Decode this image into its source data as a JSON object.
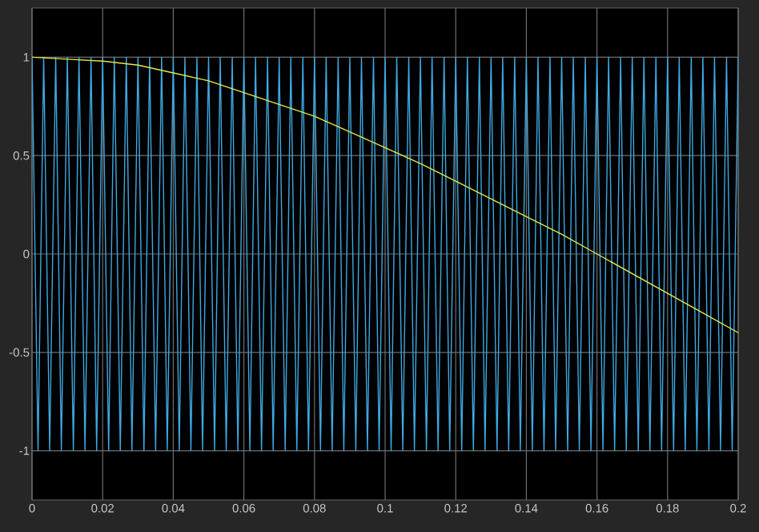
{
  "chart_data": {
    "type": "line",
    "xlim": [
      0,
      0.2
    ],
    "ylim": [
      -1.25,
      1.25
    ],
    "xticks": [
      0,
      0.02,
      0.04,
      0.06,
      0.08,
      0.1,
      0.12,
      0.14,
      0.16,
      0.18,
      0.2
    ],
    "yticks": [
      -1,
      -0.5,
      0,
      0.5,
      1
    ],
    "grid": true,
    "line_style": "solid",
    "series": [
      {
        "color": "#3fa9e3",
        "x": [
          0,
          0.0017,
          0.0033,
          0.005,
          0.0067,
          0.0083,
          0.01,
          0.0117,
          0.0133,
          0.015,
          0.0167,
          0.0183,
          0.02,
          0.0217,
          0.0233,
          0.025,
          0.0267,
          0.0283,
          0.03,
          0.0317,
          0.0333,
          0.035,
          0.0367,
          0.0383,
          0.04,
          0.0417,
          0.0433,
          0.045,
          0.0467,
          0.0483,
          0.05,
          0.0517,
          0.0533,
          0.055,
          0.0567,
          0.0583,
          0.06,
          0.0617,
          0.0633,
          0.065,
          0.0667,
          0.0683,
          0.07,
          0.0717,
          0.0733,
          0.075,
          0.0767,
          0.0783,
          0.08,
          0.0817,
          0.0833,
          0.085,
          0.0867,
          0.0883,
          0.09,
          0.0917,
          0.0933,
          0.095,
          0.0967,
          0.0983,
          0.1,
          0.1017,
          0.1033,
          0.105,
          0.1067,
          0.1083,
          0.11,
          0.1117,
          0.1133,
          0.115,
          0.1167,
          0.1183,
          0.12,
          0.1217,
          0.1233,
          0.125,
          0.1267,
          0.1283,
          0.13,
          0.1317,
          0.1333,
          0.135,
          0.1367,
          0.1383,
          0.14,
          0.1417,
          0.1433,
          0.145,
          0.1467,
          0.1483,
          0.15,
          0.1517,
          0.1533,
          0.155,
          0.1567,
          0.1583,
          0.16,
          0.1617,
          0.1633,
          0.165,
          0.1667,
          0.1683,
          0.17,
          0.1717,
          0.1733,
          0.175,
          0.1767,
          0.1783,
          0.18,
          0.1817,
          0.1833,
          0.185,
          0.1867,
          0.1883,
          0.19,
          0.1917,
          0.1933,
          0.195,
          0.1967,
          0.1983,
          0.2
        ],
        "values": [
          1,
          -1,
          1,
          -1,
          1,
          -1,
          1,
          -1,
          1,
          -1,
          1,
          -1,
          1,
          -1,
          1,
          -1,
          1,
          -1,
          1,
          -1,
          1,
          -1,
          1,
          -1,
          1,
          -1,
          1,
          -1,
          1,
          -1,
          1,
          -1,
          1,
          -1,
          1,
          -1,
          1,
          -1,
          1,
          -1,
          1,
          -1,
          1,
          -1,
          1,
          -1,
          1,
          -1,
          1,
          -1,
          1,
          -1,
          1,
          -1,
          1,
          -1,
          1,
          -1,
          1,
          -1,
          1,
          -1,
          1,
          -1,
          1,
          -1,
          1,
          -1,
          1,
          -1,
          1,
          -1,
          1,
          -1,
          1,
          -1,
          1,
          -1,
          1,
          -1,
          1,
          -1,
          1,
          -1,
          1,
          -1,
          1,
          -1,
          1,
          -1,
          1,
          -1,
          1,
          -1,
          1,
          -1,
          1,
          -1,
          1,
          -1,
          1,
          -1,
          1,
          -1,
          1,
          -1,
          1,
          -1,
          1,
          -1,
          1,
          -1,
          1,
          -1,
          1,
          -1,
          1,
          -1,
          1,
          -1,
          1
        ]
      },
      {
        "color": "#e6e64a",
        "x": [
          0,
          0.01,
          0.02,
          0.03,
          0.04,
          0.05,
          0.06,
          0.07,
          0.08,
          0.09,
          0.1,
          0.11,
          0.12,
          0.13,
          0.14,
          0.15,
          0.16,
          0.17,
          0.18,
          0.19,
          0.2
        ],
        "values": [
          1,
          0.99,
          0.98,
          0.96,
          0.92,
          0.88,
          0.82,
          0.76,
          0.7,
          0.62,
          0.54,
          0.46,
          0.37,
          0.28,
          0.19,
          0.1,
          0,
          -0.1,
          -0.2,
          -0.3,
          -0.4
        ]
      }
    ]
  }
}
